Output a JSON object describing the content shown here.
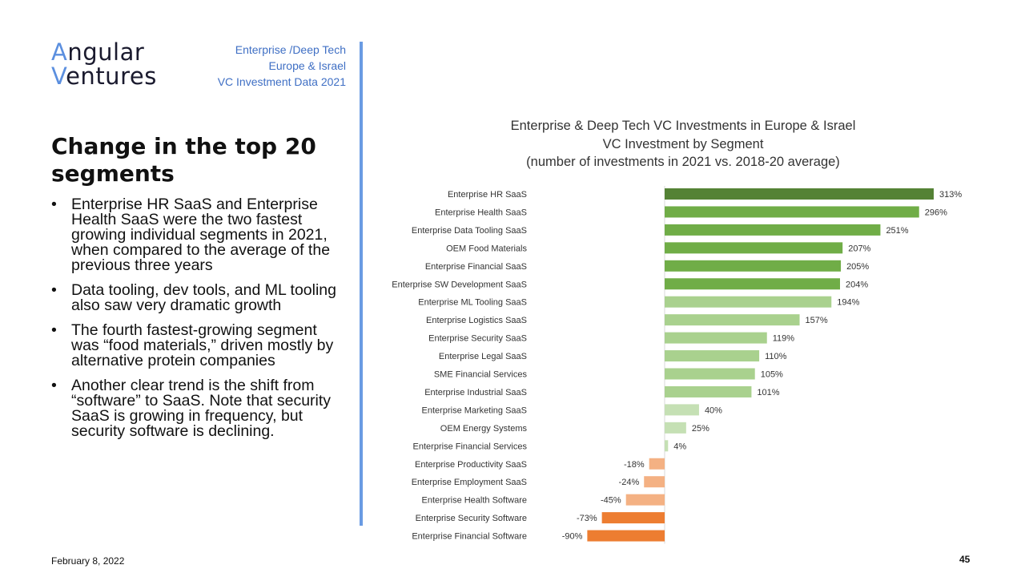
{
  "logo": {
    "line1_initial": "A",
    "line1_rest": "ngular",
    "line2_initial": "V",
    "line2_rest": "entures"
  },
  "meta": {
    "line1": "Enterprise /Deep Tech",
    "line2": "Europe & Israel",
    "line3": "VC Investment Data 2021"
  },
  "heading": "Change in the top 20 segments",
  "bullets": [
    "Enterprise HR SaaS and Enterprise Health SaaS were the two fastest growing individual segments in 2021, when compared to the average of the previous three years",
    "Data tooling, dev tools, and ML tooling also saw very dramatic growth",
    "The fourth fastest-growing segment was “food materials,” driven mostly by alternative protein companies",
    "Another clear trend is the shift from “software” to SaaS. Note that security SaaS is growing in frequency, but security software is declining."
  ],
  "bullet_symbol": "•",
  "footer": {
    "date": "February 8, 2022",
    "page": "45"
  },
  "colors": {
    "accent": "#6a9be3",
    "dark_green": "#548235",
    "green": "#70ad47",
    "light_green": "#a9d18e",
    "pale_green": "#c5e0b4",
    "light_orange": "#f4b183",
    "orange": "#ed7d31"
  },
  "chart_data": {
    "type": "bar",
    "orientation": "horizontal",
    "title": "Enterprise & Deep Tech VC Investments in Europe & Israel",
    "subtitle": "VC Investment by Segment",
    "subtitle2": "(number of investments in 2021 vs. 2018-20 average)",
    "value_suffix": "%",
    "categories": [
      "Enterprise HR SaaS",
      "Enterprise Health SaaS",
      "Enterprise Data Tooling SaaS",
      "OEM Food Materials",
      "Enterprise Financial SaaS",
      "Enterprise SW Development SaaS",
      "Enterprise ML Tooling SaaS",
      "Enterprise Logistics SaaS",
      "Enterprise Security SaaS",
      "Enterprise Legal SaaS",
      "SME Financial Services",
      "Enterprise Industrial SaaS",
      "Enterprise Marketing SaaS",
      "OEM Energy Systems",
      "Enterprise Financial Services",
      "Enterprise Productivity SaaS",
      "Enterprise Employment SaaS",
      "Enterprise Health Software",
      "Enterprise Security Software",
      "Enterprise Financial Software"
    ],
    "values": [
      313,
      296,
      251,
      207,
      205,
      204,
      194,
      157,
      119,
      110,
      105,
      101,
      40,
      25,
      4,
      -18,
      -24,
      -45,
      -73,
      -90
    ],
    "bar_colors": [
      "#548235",
      "#70ad47",
      "#70ad47",
      "#70ad47",
      "#70ad47",
      "#70ad47",
      "#a9d18e",
      "#a9d18e",
      "#a9d18e",
      "#a9d18e",
      "#a9d18e",
      "#a9d18e",
      "#c5e0b4",
      "#c5e0b4",
      "#c5e0b4",
      "#f4b183",
      "#f4b183",
      "#f4b183",
      "#ed7d31",
      "#ed7d31"
    ],
    "xlim": [
      -90,
      313
    ]
  }
}
